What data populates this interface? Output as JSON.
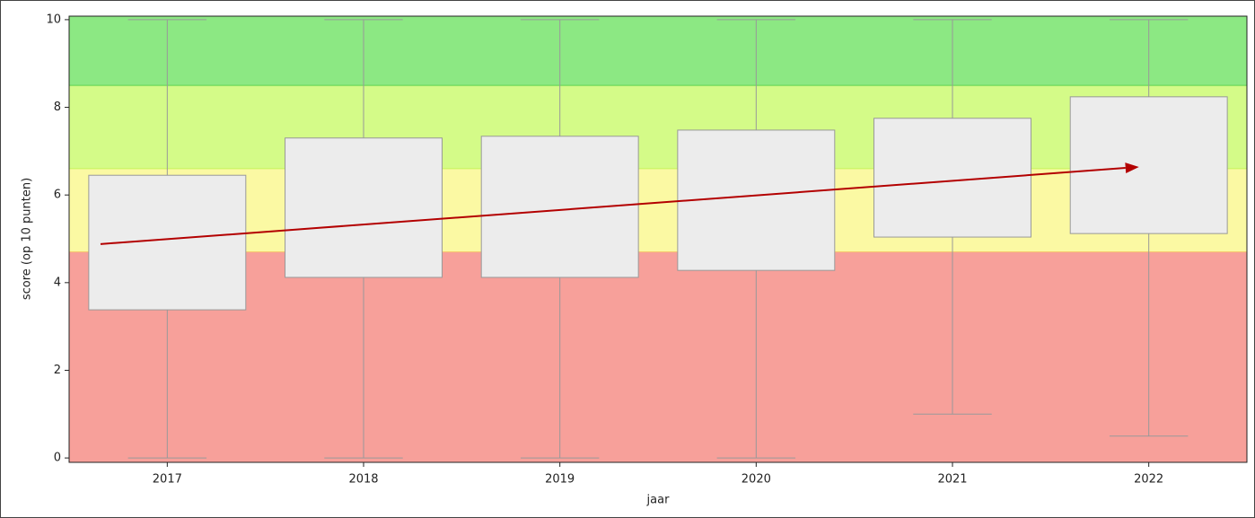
{
  "chart_data": {
    "type": "box",
    "x_label": "jaar",
    "y_label": "score (op 10 punten)",
    "categories": [
      "2017",
      "2018",
      "2019",
      "2020",
      "2021",
      "2022"
    ],
    "min": [
      0,
      0,
      0,
      0,
      1.0,
      0.5
    ],
    "q1": [
      3.38,
      4.12,
      4.12,
      4.28,
      5.04,
      5.12
    ],
    "q3": [
      6.45,
      7.3,
      7.34,
      7.48,
      7.75,
      8.24
    ],
    "max": [
      10,
      10,
      10,
      10,
      10,
      10
    ],
    "box_color": "#ececec",
    "edge_color": "#999999",
    "ylim": [
      -0.1,
      10.08
    ],
    "yticks": [
      0,
      2,
      4,
      6,
      8,
      10
    ],
    "band_edges": [
      4.7,
      6.6,
      8.5
    ],
    "band_colors": [
      "#f7a09a",
      "#fbf9a3",
      "#d4fb88",
      "#8ce883"
    ],
    "band_edge_colors": [
      "#f5c06a",
      "#c8f35a",
      "#5fd44f"
    ],
    "arrow": {
      "start": [
        -0.34,
        4.88
      ],
      "end": [
        4.95,
        6.64
      ],
      "color": "#b30000"
    }
  }
}
